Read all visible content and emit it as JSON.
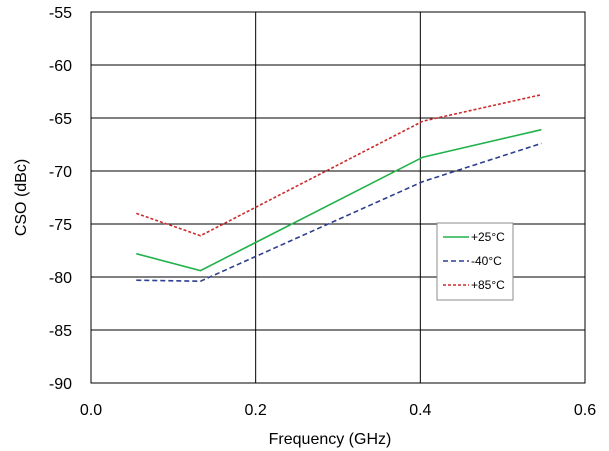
{
  "chart_data": {
    "type": "line",
    "title": "",
    "xlabel": "Frequency (GHz)",
    "ylabel": "CSO (dBc)",
    "xlim": [
      0.0,
      0.6
    ],
    "ylim": [
      -90,
      -55
    ],
    "xticks": [
      0.0,
      0.2,
      0.4,
      0.6
    ],
    "xtick_labels": [
      "0.0",
      "0.2",
      "0.4",
      "0.6"
    ],
    "yticks": [
      -55,
      -60,
      -65,
      -70,
      -75,
      -80,
      -85,
      -90
    ],
    "ytick_labels": [
      "-55",
      "-60",
      "-65",
      "-70",
      "-75",
      "-80",
      "-85",
      "-90"
    ],
    "grid": true,
    "legend_position": "center-right",
    "series": [
      {
        "name": "+25°C",
        "color": "#22b24c",
        "dash": "solid",
        "x": [
          0.055,
          0.133,
          0.403,
          0.547
        ],
        "y": [
          -77.8,
          -79.4,
          -68.7,
          -66.1
        ]
      },
      {
        "name": "-40°C",
        "color": "#2e3f8f",
        "dash": "dashed",
        "x": [
          0.055,
          0.133,
          0.403,
          0.547
        ],
        "y": [
          -80.3,
          -80.4,
          -71.0,
          -67.4
        ]
      },
      {
        "name": "+85°C",
        "color": "#cc2b2b",
        "dash": "dotted",
        "x": [
          0.055,
          0.133,
          0.403,
          0.547
        ],
        "y": [
          -74.0,
          -76.1,
          -65.3,
          -62.8
        ]
      }
    ]
  }
}
